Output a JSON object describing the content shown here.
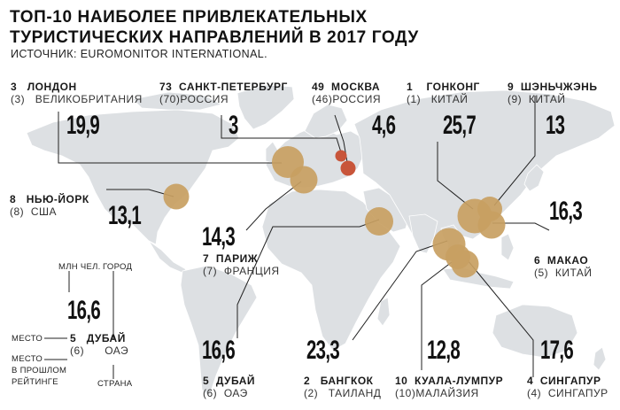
{
  "header": {
    "title_line1": "ТОП-10 НАИБОЛЕЕ ПРИВЛЕКАТЕЛЬНЫХ",
    "title_line2": "ТУРИСТИЧЕСКИХ НАПРАВЛЕНИЙ В 2017 ГОДУ",
    "source": "ИСТОЧНИК: EUROMONITOR INTERNATIONAL."
  },
  "colors": {
    "bubble": "#c8a062",
    "highlight": "#c8553a",
    "land": "#dde0e3",
    "line": "#222222"
  },
  "cities": [
    {
      "id": "london",
      "rank": "3",
      "name": "ЛОНДОН",
      "prev": "(3)",
      "country": "ВЕЛИКОБРИТАНИЯ",
      "value": "19,9"
    },
    {
      "id": "spb",
      "rank": "73",
      "name": "САНКТ-ПЕТЕРБУРГ",
      "prev": "(70)",
      "country": "РОССИЯ",
      "value": "3"
    },
    {
      "id": "moscow",
      "rank": "49",
      "name": "МОСКВА",
      "prev": "(46)",
      "country": "РОССИЯ",
      "value": "4,6"
    },
    {
      "id": "hongkong",
      "rank": "1",
      "name": "ГОНКОНГ",
      "prev": "(1)",
      "country": "КИТАЙ",
      "value": "25,7"
    },
    {
      "id": "shenzhen",
      "rank": "9",
      "name": "ШЭНЬЧЖЭНЬ",
      "prev": "(9)",
      "country": "КИТАЙ",
      "value": "13"
    },
    {
      "id": "newyork",
      "rank": "8",
      "name": "НЬЮ-ЙОРК",
      "prev": "(8)",
      "country": "США",
      "value": "13,1"
    },
    {
      "id": "paris",
      "rank": "7",
      "name": "ПАРИЖ",
      "prev": "(7)",
      "country": "ФРАНЦИЯ",
      "value": "14,3"
    },
    {
      "id": "macau",
      "rank": "6",
      "name": "МАКАО",
      "prev": "(5)",
      "country": "КИТАЙ",
      "value": "16,3"
    },
    {
      "id": "dubai",
      "rank": "5",
      "name": "ДУБАЙ",
      "prev": "(6)",
      "country": "ОАЭ",
      "value": "16,6"
    },
    {
      "id": "bangkok",
      "rank": "2",
      "name": "БАНГКОК",
      "prev": "(2)",
      "country": "ТАИЛАНД",
      "value": "23,3"
    },
    {
      "id": "kl",
      "rank": "10",
      "name": "КУАЛА-ЛУМПУР",
      "prev": "(10)",
      "country": "МАЛАЙЗИЯ",
      "value": "12,8"
    },
    {
      "id": "singapore",
      "rank": "4",
      "name": "СИНГАПУР",
      "prev": "(4)",
      "country": "СИНГАПУР",
      "value": "17,6"
    }
  ],
  "legend": {
    "unit": "МЛН ЧЕЛ.",
    "city": "ГОРОД",
    "value": "16,6",
    "place": "МЕСТО",
    "rank": "5",
    "name": "ДУБАЙ",
    "prev_place_line1": "МЕСТО",
    "prev_place_line2": "В ПРОШЛОМ",
    "prev_place_line3": "РЕЙТИНГЕ",
    "prev": "(6)",
    "country_value": "ОАЭ",
    "country": "СТРАНА"
  }
}
